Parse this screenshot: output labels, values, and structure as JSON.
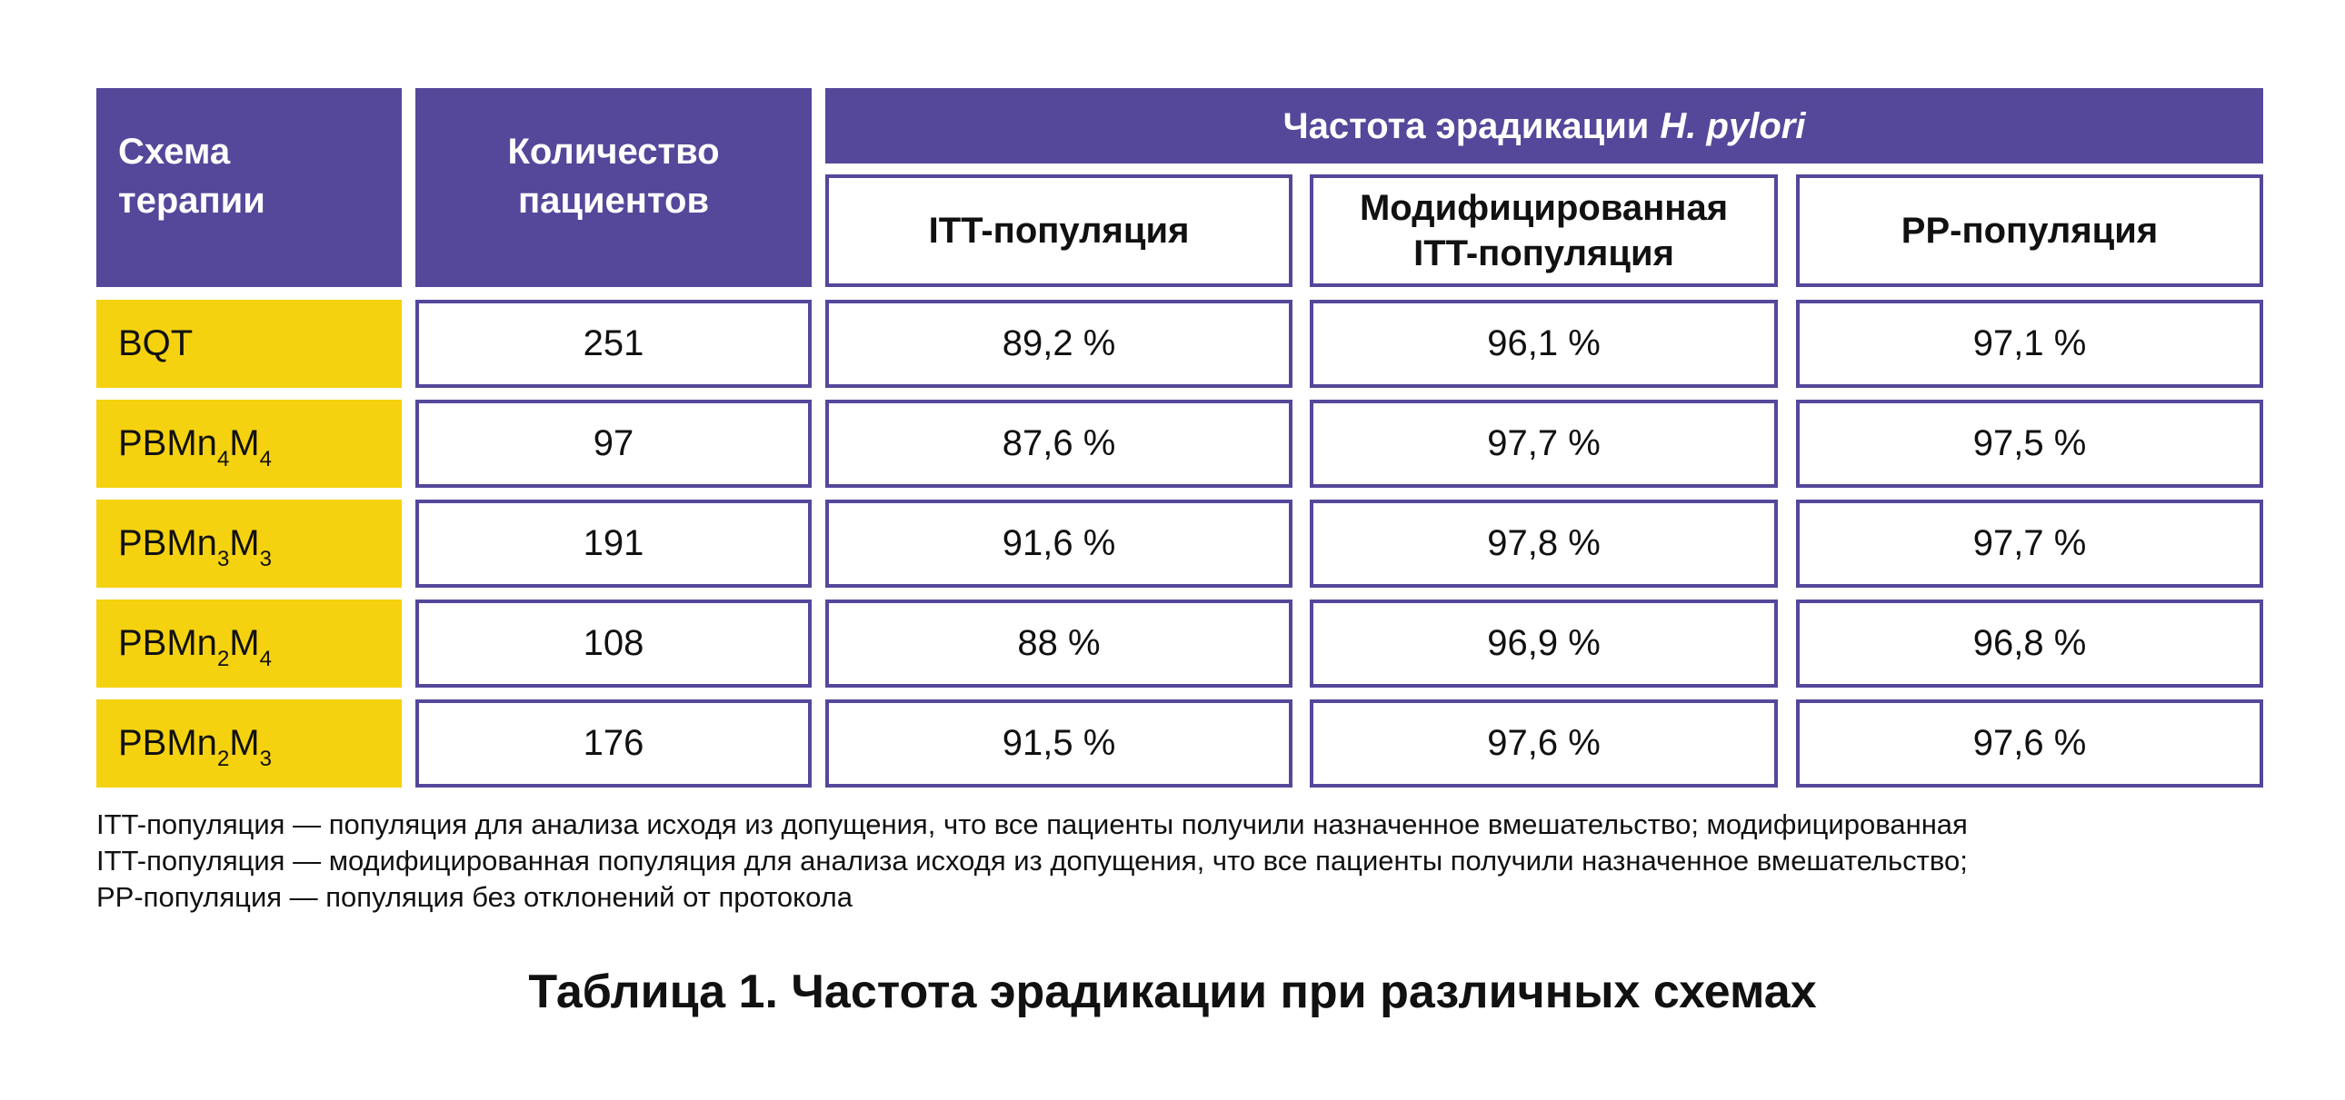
{
  "colors": {
    "header_bg": "#55479a",
    "row_label_bg": "#f5d20f",
    "border": "#55479a"
  },
  "table": {
    "header": {
      "scheme_line1": "Схема",
      "scheme_line2": "терапии",
      "count_line1": "Количество",
      "count_line2": "пациентов",
      "group_label": "Частота эрадикации",
      "group_label_italic": "H. pylori",
      "col_itt": "ITT-популяция",
      "col_mitt_line1": "Модифицированная",
      "col_mitt_line2": "ITT-популяция",
      "col_pp": "PP-популяция"
    },
    "rows": [
      {
        "scheme_base": "BQT",
        "scheme_s1": "",
        "scheme_mid": "",
        "scheme_s2": "",
        "count": "251",
        "itt": "89,2 %",
        "mitt": "96,1 %",
        "pp": "97,1 %"
      },
      {
        "scheme_base": "PBMn",
        "scheme_s1": "4",
        "scheme_mid": "M",
        "scheme_s2": "4",
        "count": "97",
        "itt": "87,6 %",
        "mitt": "97,7 %",
        "pp": "97,5 %"
      },
      {
        "scheme_base": "PBMn",
        "scheme_s1": "3",
        "scheme_mid": "M",
        "scheme_s2": "3",
        "count": "191",
        "itt": "91,6 %",
        "mitt": "97,8 %",
        "pp": "97,7 %"
      },
      {
        "scheme_base": "PBMn",
        "scheme_s1": "2",
        "scheme_mid": "M",
        "scheme_s2": "4",
        "count": "108",
        "itt": "88 %",
        "mitt": "96,9 %",
        "pp": "96,8 %"
      },
      {
        "scheme_base": "PBMn",
        "scheme_s1": "2",
        "scheme_mid": "M",
        "scheme_s2": "3",
        "count": "176",
        "itt": "91,5 %",
        "mitt": "97,6 %",
        "pp": "97,6 %"
      }
    ]
  },
  "footnote": {
    "line1": "ITT-популяция — популяция для анализа исходя из допущения, что все пациенты получили назначенное вмешательство; модифицированная",
    "line2": "ITT-популяция — модифицированная популяция для анализа исходя из допущения, что все пациенты получили назначенное вмешательство;",
    "line3": "PP-популяция — популяция без отклонений от протокола"
  },
  "caption": "Таблица 1. Частота эрадикации при различных схемах"
}
